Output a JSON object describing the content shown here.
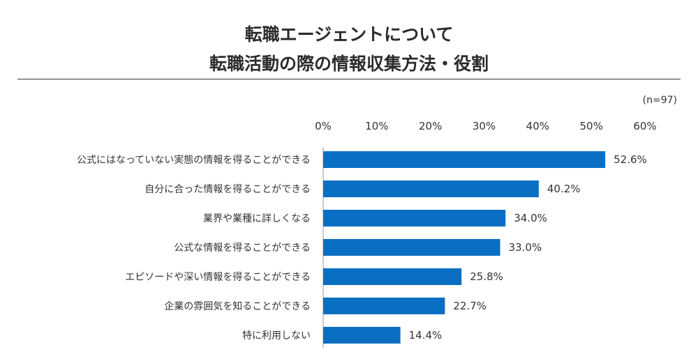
{
  "title": {
    "line1": "転職エージェントについて",
    "line2": "転職活動の際の情報収集方法・役割"
  },
  "sample_size": "(n=97)",
  "chart_data": {
    "type": "bar",
    "orientation": "horizontal",
    "title": "転職エージェントについて 転職活動の際の情報収集方法・役割",
    "categories": [
      "公式にはなっていない実態の情報を得ることができる",
      "自分に合った情報を得ることができる",
      "業界や業種に詳しくなる",
      "公式な情報を得ることができる",
      "エピソードや深い情報を得ることができる",
      "企業の雰囲気を知ることができる",
      "特に利用しない"
    ],
    "values": [
      52.6,
      40.2,
      34.0,
      33.0,
      25.8,
      22.7,
      14.4
    ],
    "value_labels": [
      "52.6%",
      "40.2%",
      "34.0%",
      "33.0%",
      "25.8%",
      "22.7%",
      "14.4%"
    ],
    "xlim": [
      0,
      60
    ],
    "ticks": [
      0,
      10,
      20,
      30,
      40,
      50,
      60
    ],
    "tick_labels": [
      "0%",
      "10%",
      "20%",
      "30%",
      "40%",
      "50%",
      "60%"
    ],
    "axis_position": "top",
    "grid": false,
    "bar_color": "#0a6fc2"
  }
}
